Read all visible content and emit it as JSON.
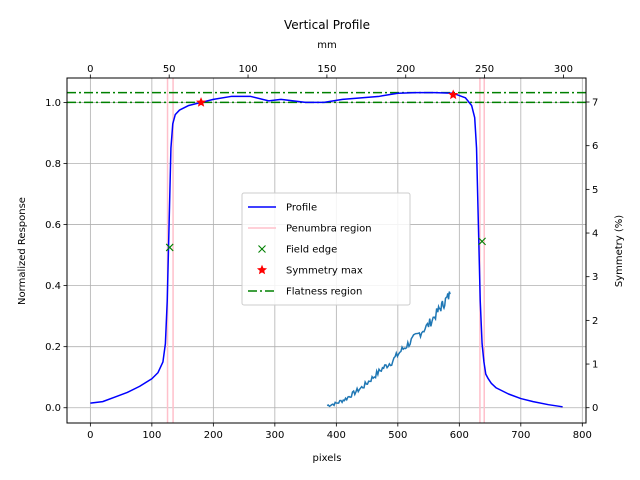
{
  "chart_data": {
    "type": "line",
    "title": "Vertical Profile",
    "xlabel": "pixels",
    "ylabel": "Normalized Response",
    "secondary_xlabel": "mm",
    "secondary_ylabel": "Symmetry (%)",
    "xlim": [
      -38,
      806
    ],
    "ylim": [
      -0.05,
      1.08
    ],
    "secondary_xlim": [
      -14.8,
      314.3
    ],
    "secondary_ylim": [
      -0.35,
      7.55
    ],
    "x_ticks": [
      0,
      100,
      200,
      300,
      400,
      500,
      600,
      700,
      800
    ],
    "y_ticks": [
      0.0,
      0.2,
      0.4,
      0.6,
      0.8,
      1.0
    ],
    "secondary_x_ticks": [
      0,
      50,
      100,
      150,
      200,
      250,
      300
    ],
    "secondary_y_ticks": [
      0,
      1,
      2,
      3,
      4,
      5,
      6,
      7
    ],
    "grid": true,
    "legend_position": "center",
    "colors": {
      "profile": "#0000ff",
      "penumbra": "#ffc0cb",
      "field_edge": "#008000",
      "symmetry_max": "#ff0000",
      "flatness": "#008000",
      "symmetry": "#1f77b4"
    },
    "series": [
      {
        "name": "Profile",
        "style": "line",
        "x": [
          0,
          20,
          40,
          60,
          80,
          100,
          110,
          118,
          122,
          125,
          128,
          131,
          134,
          138,
          145,
          160,
          180,
          200,
          230,
          260,
          290,
          310,
          330,
          350,
          380,
          410,
          440,
          470,
          500,
          530,
          560,
          590,
          610,
          620,
          625,
          628,
          631,
          634,
          637,
          640,
          643,
          647,
          652,
          660,
          680,
          700,
          720,
          745,
          768
        ],
        "y": [
          0.015,
          0.02,
          0.035,
          0.05,
          0.07,
          0.095,
          0.115,
          0.15,
          0.21,
          0.35,
          0.6,
          0.85,
          0.93,
          0.96,
          0.975,
          0.99,
          1.0,
          1.01,
          1.02,
          1.02,
          1.005,
          1.01,
          1.005,
          1.0,
          1.0,
          1.01,
          1.015,
          1.02,
          1.03,
          1.032,
          1.032,
          1.03,
          1.015,
          0.99,
          0.95,
          0.85,
          0.6,
          0.35,
          0.21,
          0.15,
          0.11,
          0.095,
          0.08,
          0.065,
          0.045,
          0.03,
          0.02,
          0.01,
          0.003
        ]
      },
      {
        "name": "Penumbra region",
        "style": "vlines",
        "x": [
          125.5,
          134.5,
          633.5,
          640.5
        ]
      },
      {
        "name": "Field edge",
        "style": "x-marker",
        "x": [
          129,
          637
        ],
        "y": [
          0.525,
          0.545
        ]
      },
      {
        "name": "Symmetry max",
        "style": "star-marker",
        "x": [
          180,
          590
        ],
        "y": [
          1.0,
          1.025
        ]
      },
      {
        "name": "Flatness region",
        "style": "hlines",
        "y": [
          1.0,
          1.032
        ]
      },
      {
        "name": "",
        "style": "noisy-line",
        "axis": "secondary",
        "x": [
          385,
          400,
          415,
          430,
          445,
          460,
          475,
          490,
          505,
          520,
          535,
          550,
          565,
          575,
          585
        ],
        "y": [
          0.05,
          0.1,
          0.2,
          0.35,
          0.5,
          0.7,
          0.9,
          1.05,
          1.3,
          1.5,
          1.7,
          1.9,
          2.2,
          2.4,
          2.6
        ]
      }
    ]
  }
}
